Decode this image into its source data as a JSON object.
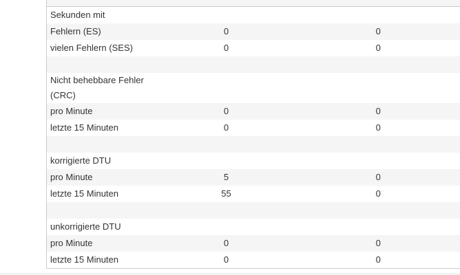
{
  "rows": [
    {
      "label": "Sekunden mit",
      "v1": "",
      "v2": ""
    },
    {
      "label": "Fehlern (ES)",
      "v1": "0",
      "v2": "0"
    },
    {
      "label": "vielen Fehlern (SES)",
      "v1": "0",
      "v2": "0"
    },
    {
      "label": "",
      "v1": "",
      "v2": ""
    },
    {
      "label": "Nicht behebbare Fehler (CRC)",
      "v1": "",
      "v2": ""
    },
    {
      "label": "pro Minute",
      "v1": "0",
      "v2": "0"
    },
    {
      "label": "letzte 15 Minuten",
      "v1": "0",
      "v2": "0"
    },
    {
      "label": "",
      "v1": "",
      "v2": ""
    },
    {
      "label": "korrigierte DTU",
      "v1": "",
      "v2": ""
    },
    {
      "label": "pro Minute",
      "v1": "5",
      "v2": "0"
    },
    {
      "label": "letzte 15 Minuten",
      "v1": "55",
      "v2": "0"
    },
    {
      "label": "",
      "v1": "",
      "v2": ""
    },
    {
      "label": "unkorrigierte DTU",
      "v1": "",
      "v2": ""
    },
    {
      "label": "pro Minute",
      "v1": "0",
      "v2": "0"
    },
    {
      "label": "letzte 15 Minuten",
      "v1": "0",
      "v2": "0"
    }
  ]
}
